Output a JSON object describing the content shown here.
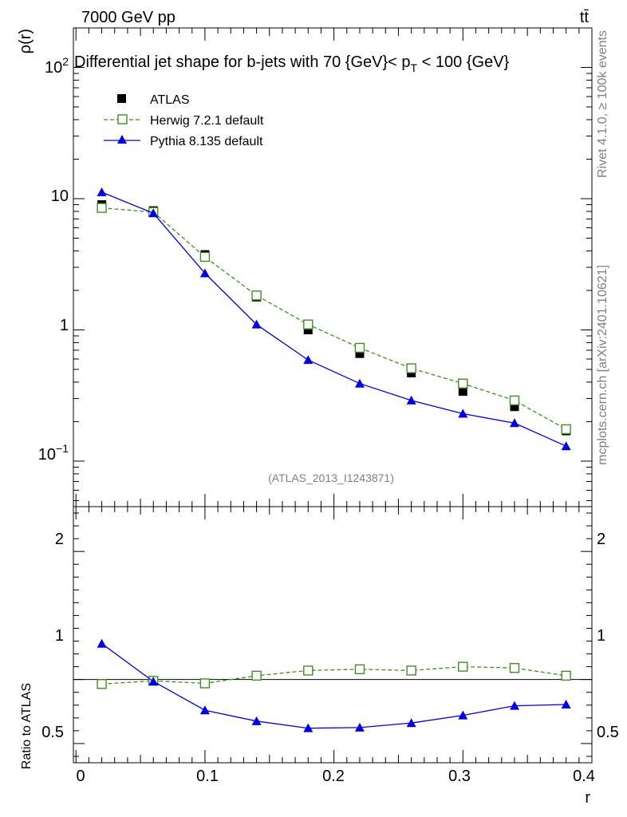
{
  "header": {
    "energy_label": "7000 GeV pp",
    "process_label": "tt̄"
  },
  "side_labels": {
    "rivet": "Rivet 4.1.0, ≥ 100k events",
    "mcplots": "mcplots.cern.ch [arXiv:2401.10621]"
  },
  "analysis_label": "(ATLAS_2013_I1243871)",
  "chart_data": [
    {
      "type": "line",
      "title": "Differential jet shape for b-jets with 70 {GeV}< p_T < 100 {GeV}",
      "title_parts": {
        "main": "Differential jet shape for b-jets with 70 {GeV}< p",
        "sub": "T",
        "tail": " < 100 {GeV}"
      },
      "xlabel": "r",
      "ylabel": "ρ(r)",
      "yscale": "log",
      "xlim": [
        -0.002,
        0.4
      ],
      "ylim": [
        0.045,
        200
      ],
      "x_ticks": [
        "0",
        "0.1",
        "0.2",
        "0.3",
        "0.4"
      ],
      "y_ticks": [
        {
          "base": "10",
          "exp": "−1"
        },
        {
          "base": "1",
          "exp": ""
        },
        {
          "base": "10",
          "exp": ""
        },
        {
          "base": "10",
          "exp": "2"
        }
      ],
      "legend_position": "top-left",
      "x": [
        0.02,
        0.06,
        0.1,
        0.14,
        0.18,
        0.22,
        0.26,
        0.3,
        0.34,
        0.38
      ],
      "series": [
        {
          "name": "ATLAS",
          "color": "#000000",
          "marker": "filled-square",
          "values": [
            9.0,
            8.1,
            3.75,
            1.78,
            1.0,
            0.66,
            0.47,
            0.34,
            0.26,
            0.17
          ]
        },
        {
          "name": "Herwig 7.2.1 default",
          "color": "#3f8f1f",
          "marker": "open-square",
          "dashed": true,
          "values": [
            8.5,
            7.9,
            3.6,
            1.83,
            1.1,
            0.73,
            0.51,
            0.39,
            0.29,
            0.175
          ]
        },
        {
          "name": "Pythia 8.135 default",
          "color": "#0000e0",
          "marker": "filled-triangle",
          "values": [
            11.2,
            7.75,
            2.7,
            1.1,
            0.59,
            0.39,
            0.29,
            0.23,
            0.195,
            0.13
          ]
        }
      ]
    },
    {
      "type": "line",
      "ylabel": "Ratio to ATLAS",
      "xlabel": "r",
      "ylim": [
        0.35,
        2.35
      ],
      "y_ticks": [
        "0.5",
        "1",
        "2"
      ],
      "x": [
        0.02,
        0.06,
        0.1,
        0.14,
        0.18,
        0.22,
        0.26,
        0.3,
        0.34,
        0.38
      ],
      "reference": 1.0,
      "series": [
        {
          "name": "Herwig 7.2.1 default",
          "color": "#3f8f1f",
          "marker": "open-square",
          "dashed": true,
          "values": [
            0.965,
            0.99,
            0.97,
            1.03,
            1.07,
            1.08,
            1.07,
            1.1,
            1.09,
            1.03
          ]
        },
        {
          "name": "Pythia 8.135 default",
          "color": "#0000e0",
          "marker": "filled-triangle",
          "values": [
            1.28,
            0.985,
            0.76,
            0.675,
            0.62,
            0.625,
            0.66,
            0.72,
            0.795,
            0.805
          ]
        }
      ]
    }
  ]
}
